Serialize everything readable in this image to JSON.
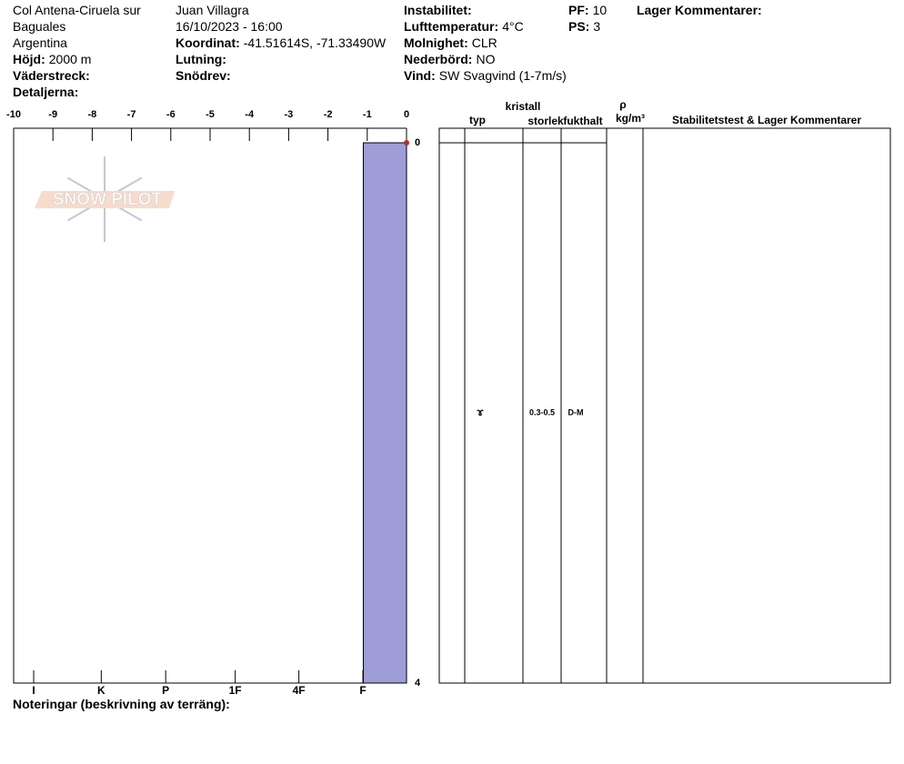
{
  "header": {
    "columns": [
      [
        {
          "value": "Col Antena-Ciruela sur"
        },
        {
          "value": "Baguales"
        },
        {
          "value": "Argentina"
        },
        {
          "label": "Höjd:",
          "value": "2000 m"
        },
        {
          "label": "Väderstreck:"
        },
        {
          "label": "Detaljerna:"
        }
      ],
      [
        {
          "value": "Juan Villagra"
        },
        {
          "value": "16/10/2023 - 16:00"
        },
        {
          "label": "Koordinat:",
          "value": "-41.51614S, -71.33490W"
        },
        {
          "label": "Lutning:"
        },
        {
          "label": "Snödrev:"
        }
      ],
      [
        {
          "label": "Instabilitet:"
        },
        {
          "label": "Lufttemperatur:",
          "value": "4°C"
        },
        {
          "label": "Molnighet:",
          "value": "CLR"
        },
        {
          "label": "Nederbörd:",
          "value": "NO"
        },
        {
          "label": "Vind:",
          "value": "SW Svagvind (1-7m/s)"
        }
      ],
      [
        {
          "label": "PF:",
          "value": "10"
        },
        {
          "label": "PS:",
          "value": "3"
        }
      ],
      [
        {
          "label": "Lager Kommentarer:"
        }
      ]
    ]
  },
  "logo": "SNOW PILOT",
  "chart_data": {
    "type": "snow-profile",
    "xlim": [
      -10,
      0
    ],
    "xticks": [
      -10,
      -9,
      -8,
      -7,
      -6,
      -5,
      -4,
      -3,
      -2,
      -1,
      0
    ],
    "hardness_ticks": [
      {
        "value": -9.49,
        "label": "I"
      },
      {
        "value": -7.77,
        "label": "K"
      },
      {
        "value": -6.13,
        "label": "P"
      },
      {
        "value": -4.36,
        "label": "1F"
      },
      {
        "value": -2.74,
        "label": "4F"
      },
      {
        "value": -1.11,
        "label": "F"
      }
    ],
    "ylim": [
      0,
      4
    ],
    "yticks": [
      0,
      4
    ],
    "layer_color": "#9e9dd8",
    "layers": [
      {
        "top": 0,
        "bottom": 4,
        "hardness": -1.1,
        "grain": "ɤ",
        "size": "0.3-0.5",
        "moisture": "D-M"
      }
    ],
    "snow_temperature": {
      "depth": [
        0
      ],
      "values": [
        0
      ],
      "color": "#c0282a"
    }
  },
  "table": {
    "headers": {
      "type": "typ",
      "crystal": "kristall",
      "size": "storlek",
      "moisture": "fukthalt",
      "rho": "ρ",
      "density_unit": "kg/m³",
      "comments": "Stabilitetstest & Lager Kommentarer"
    }
  },
  "footer": "Noteringar (beskrivning av terräng):"
}
